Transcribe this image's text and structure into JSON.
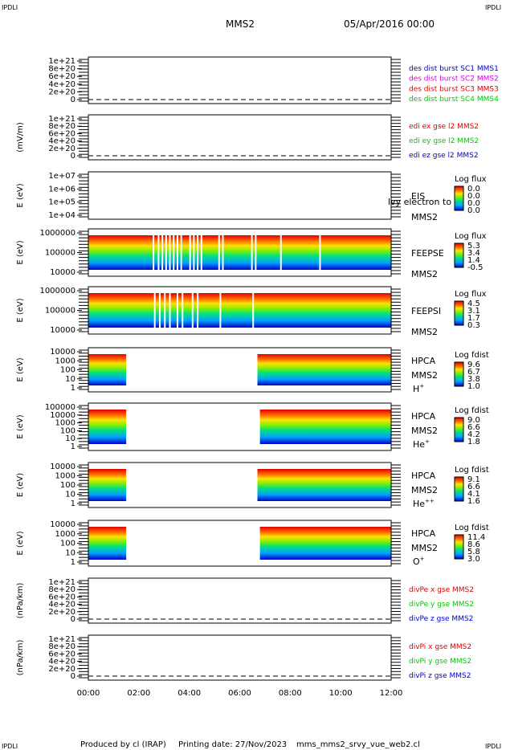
{
  "corner_mark": "IPDLI",
  "header": {
    "spacecraft": "MMS2",
    "datetime": "05/Apr/2016 00:00"
  },
  "footer": {
    "produced_by": "Produced by cl (IRAP)",
    "printing_date": "Printing date: 27/Nov/2023",
    "script": "mms_mms2_srvy_vue_web2.cl"
  },
  "colors": {
    "red": "#e00000",
    "magenta": "#e000e0",
    "green": "#00c800",
    "blue": "#0000cc",
    "axis": "#000000"
  },
  "chart_data": [
    {
      "id": "des",
      "type": "line",
      "ylabel": "",
      "y_ticks": [
        "1e+21",
        "8e+20",
        "6e+20",
        "4e+20",
        "2e+20",
        "0"
      ],
      "legend": [
        {
          "text": "des dist burst SC1 MMS1",
          "color": "blue"
        },
        {
          "text": "des dist burst SC2 MMS2",
          "color": "magenta"
        },
        {
          "text": "des dist burst SC3 MMS3",
          "color": "red"
        },
        {
          "text": "des dist burst SC4 MMS4",
          "color": "green"
        }
      ],
      "zero_line": true
    },
    {
      "id": "edi",
      "type": "line",
      "ylabel": "(mV/m)",
      "y_ticks": [
        "1e+21",
        "8e+20",
        "6e+20",
        "4e+20",
        "2e+20",
        "0"
      ],
      "legend": [
        {
          "text": "edi ex gse l2 MMS2",
          "color": "red"
        },
        {
          "text": "edi ey gse l2 MMS2",
          "color": "green"
        },
        {
          "text": "edi ez gse l2 MMS2",
          "color": "blue"
        }
      ],
      "zero_line": true
    },
    {
      "id": "eis",
      "type": "heatmap",
      "ylabel": "E (eV)",
      "y_ticks": [
        "1e+07",
        "1e+06",
        "1e+05",
        "1e+04"
      ],
      "instrument": [
        "EIS",
        "MMS2"
      ],
      "overlay_text": "lvy electron to",
      "colorbar_title": "Log flux",
      "colorbar_ticks": [
        "0.0",
        "0.0",
        "0.0",
        "0.0"
      ],
      "coverage": []
    },
    {
      "id": "feepse",
      "type": "heatmap",
      "ylabel": "E (eV)",
      "y_ticks": [
        "1000000",
        "100000",
        "10000"
      ],
      "instrument": [
        "FEEPSE",
        "MMS2"
      ],
      "colorbar_title": "Log flux",
      "colorbar_ticks": [
        "5.3",
        "3.4",
        "1.4",
        "-0.5"
      ],
      "coverage": [
        [
          0.0,
          12.0
        ]
      ],
      "gaps": [
        2.55,
        2.75,
        2.9,
        3.05,
        3.2,
        3.35,
        3.5,
        3.65,
        4.0,
        4.15,
        4.3,
        4.45,
        5.15,
        5.3,
        6.45,
        6.6,
        7.6,
        9.15
      ]
    },
    {
      "id": "feepsi",
      "type": "heatmap",
      "ylabel": "E (eV)",
      "y_ticks": [
        "1000000",
        "100000",
        "10000"
      ],
      "instrument": [
        "FEEPSI",
        "MMS2"
      ],
      "colorbar_title": "Log flux",
      "colorbar_ticks": [
        "4.5",
        "3.1",
        "1.7",
        "0.3"
      ],
      "coverage": [
        [
          0.0,
          12.0
        ]
      ],
      "gaps": [
        2.6,
        2.8,
        3.0,
        3.2,
        3.5,
        3.7,
        4.1,
        4.3,
        5.2,
        6.5
      ]
    },
    {
      "id": "hpca_h",
      "type": "heatmap",
      "ylabel": "E (eV)",
      "y_ticks": [
        "10000",
        "1000",
        "100",
        "10",
        "1"
      ],
      "instrument": [
        "HPCA",
        "MMS2",
        "H",
        "+"
      ],
      "colorbar_title": "Log fdist",
      "colorbar_ticks": [
        "9.6",
        "6.7",
        "3.8",
        "1.0"
      ],
      "coverage": [
        [
          0.0,
          1.5
        ],
        [
          6.7,
          12.0
        ]
      ]
    },
    {
      "id": "hpca_he",
      "type": "heatmap",
      "ylabel": "E (eV)",
      "y_ticks": [
        "100000",
        "10000",
        "1000",
        "100",
        "10",
        "1"
      ],
      "instrument": [
        "HPCA",
        "MMS2",
        "He",
        "+"
      ],
      "colorbar_title": "Log fdist",
      "colorbar_ticks": [
        "9.0",
        "6.6",
        "4.2",
        "1.8"
      ],
      "coverage": [
        [
          0.0,
          1.5
        ],
        [
          6.8,
          12.0
        ]
      ]
    },
    {
      "id": "hpca_hepp",
      "type": "heatmap",
      "ylabel": "E (eV)",
      "y_ticks": [
        "10000",
        "1000",
        "100",
        "10",
        "1"
      ],
      "instrument": [
        "HPCA",
        "MMS2",
        "He",
        "++"
      ],
      "colorbar_title": "Log fdist",
      "colorbar_ticks": [
        "9.1",
        "6.6",
        "4.1",
        "1.6"
      ],
      "coverage": [
        [
          0.0,
          1.5
        ],
        [
          6.7,
          12.0
        ]
      ]
    },
    {
      "id": "hpca_o",
      "type": "heatmap",
      "ylabel": "E (eV)",
      "y_ticks": [
        "10000",
        "1000",
        "100",
        "10",
        "1"
      ],
      "instrument": [
        "HPCA",
        "MMS2",
        "O",
        "+"
      ],
      "colorbar_title": "Log fdist",
      "colorbar_ticks": [
        "11.4",
        "8.6",
        "5.8",
        "3.0"
      ],
      "coverage": [
        [
          0.0,
          1.5
        ],
        [
          6.8,
          12.0
        ]
      ]
    },
    {
      "id": "divpe",
      "type": "line",
      "ylabel": "(nPa/km)",
      "y_ticks": [
        "1e+21",
        "8e+20",
        "6e+20",
        "4e+20",
        "2e+20",
        "0"
      ],
      "legend": [
        {
          "text": "divPe x gse MMS2",
          "color": "red"
        },
        {
          "text": "divPe y gse MMS2",
          "color": "green"
        },
        {
          "text": "divPe z gse MMS2",
          "color": "blue"
        }
      ],
      "zero_line": true
    },
    {
      "id": "divpi",
      "type": "line",
      "ylabel": "(nPa/km)",
      "y_ticks": [
        "1e+21",
        "8e+20",
        "6e+20",
        "4e+20",
        "2e+20",
        "0"
      ],
      "legend": [
        {
          "text": "divPi x gse MMS2",
          "color": "red"
        },
        {
          "text": "divPi y gse MMS2",
          "color": "green"
        },
        {
          "text": "divPi z gse MMS2",
          "color": "blue"
        }
      ],
      "zero_line": true
    }
  ],
  "x_axis": {
    "ticks": [
      "00:00",
      "02:00",
      "04:00",
      "06:00",
      "08:00",
      "10:00",
      "12:00"
    ],
    "range_hours": [
      0,
      12
    ]
  }
}
